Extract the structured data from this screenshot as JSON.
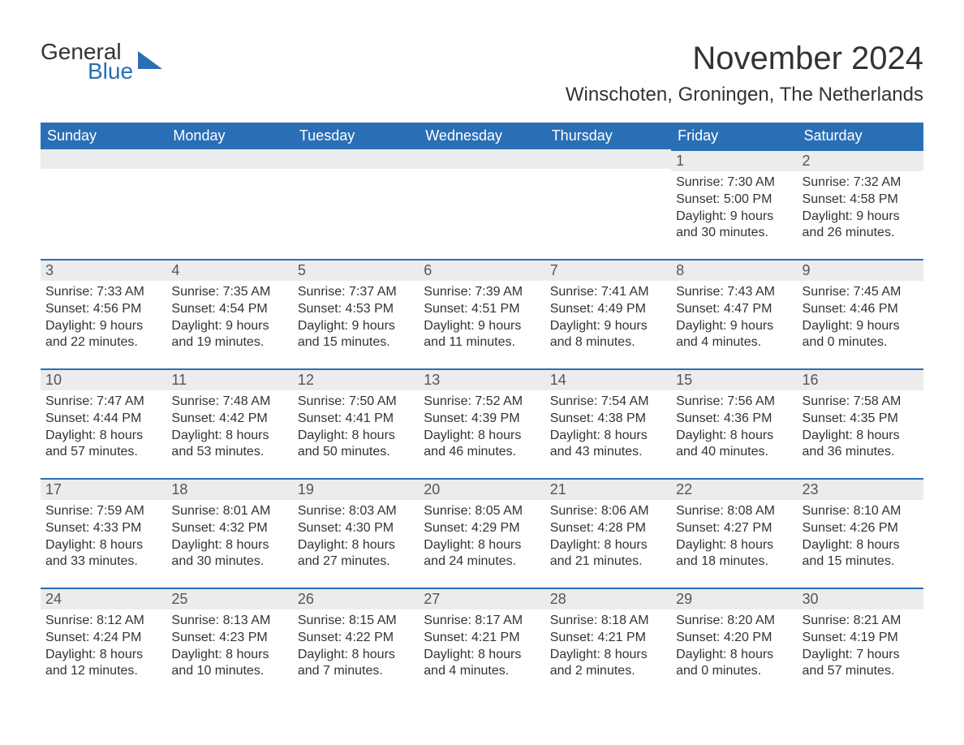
{
  "logo": {
    "general": "General",
    "blue": "Blue"
  },
  "header": {
    "title": "November 2024",
    "location": "Winschoten, Groningen, The Netherlands"
  },
  "colors": {
    "brand_blue": "#2a6fb5",
    "header_text": "#ffffff",
    "daybar_bg": "#ececec",
    "daybar_border": "#2a6fb5",
    "body_text": "#333333",
    "background": "#ffffff"
  },
  "calendar": {
    "type": "table",
    "columns": [
      "Sunday",
      "Monday",
      "Tuesday",
      "Wednesday",
      "Thursday",
      "Friday",
      "Saturday"
    ],
    "weeks": [
      [
        null,
        null,
        null,
        null,
        null,
        {
          "day": "1",
          "sunrise": "Sunrise: 7:30 AM",
          "sunset": "Sunset: 5:00 PM",
          "daylight1": "Daylight: 9 hours",
          "daylight2": "and 30 minutes."
        },
        {
          "day": "2",
          "sunrise": "Sunrise: 7:32 AM",
          "sunset": "Sunset: 4:58 PM",
          "daylight1": "Daylight: 9 hours",
          "daylight2": "and 26 minutes."
        }
      ],
      [
        {
          "day": "3",
          "sunrise": "Sunrise: 7:33 AM",
          "sunset": "Sunset: 4:56 PM",
          "daylight1": "Daylight: 9 hours",
          "daylight2": "and 22 minutes."
        },
        {
          "day": "4",
          "sunrise": "Sunrise: 7:35 AM",
          "sunset": "Sunset: 4:54 PM",
          "daylight1": "Daylight: 9 hours",
          "daylight2": "and 19 minutes."
        },
        {
          "day": "5",
          "sunrise": "Sunrise: 7:37 AM",
          "sunset": "Sunset: 4:53 PM",
          "daylight1": "Daylight: 9 hours",
          "daylight2": "and 15 minutes."
        },
        {
          "day": "6",
          "sunrise": "Sunrise: 7:39 AM",
          "sunset": "Sunset: 4:51 PM",
          "daylight1": "Daylight: 9 hours",
          "daylight2": "and 11 minutes."
        },
        {
          "day": "7",
          "sunrise": "Sunrise: 7:41 AM",
          "sunset": "Sunset: 4:49 PM",
          "daylight1": "Daylight: 9 hours",
          "daylight2": "and 8 minutes."
        },
        {
          "day": "8",
          "sunrise": "Sunrise: 7:43 AM",
          "sunset": "Sunset: 4:47 PM",
          "daylight1": "Daylight: 9 hours",
          "daylight2": "and 4 minutes."
        },
        {
          "day": "9",
          "sunrise": "Sunrise: 7:45 AM",
          "sunset": "Sunset: 4:46 PM",
          "daylight1": "Daylight: 9 hours",
          "daylight2": "and 0 minutes."
        }
      ],
      [
        {
          "day": "10",
          "sunrise": "Sunrise: 7:47 AM",
          "sunset": "Sunset: 4:44 PM",
          "daylight1": "Daylight: 8 hours",
          "daylight2": "and 57 minutes."
        },
        {
          "day": "11",
          "sunrise": "Sunrise: 7:48 AM",
          "sunset": "Sunset: 4:42 PM",
          "daylight1": "Daylight: 8 hours",
          "daylight2": "and 53 minutes."
        },
        {
          "day": "12",
          "sunrise": "Sunrise: 7:50 AM",
          "sunset": "Sunset: 4:41 PM",
          "daylight1": "Daylight: 8 hours",
          "daylight2": "and 50 minutes."
        },
        {
          "day": "13",
          "sunrise": "Sunrise: 7:52 AM",
          "sunset": "Sunset: 4:39 PM",
          "daylight1": "Daylight: 8 hours",
          "daylight2": "and 46 minutes."
        },
        {
          "day": "14",
          "sunrise": "Sunrise: 7:54 AM",
          "sunset": "Sunset: 4:38 PM",
          "daylight1": "Daylight: 8 hours",
          "daylight2": "and 43 minutes."
        },
        {
          "day": "15",
          "sunrise": "Sunrise: 7:56 AM",
          "sunset": "Sunset: 4:36 PM",
          "daylight1": "Daylight: 8 hours",
          "daylight2": "and 40 minutes."
        },
        {
          "day": "16",
          "sunrise": "Sunrise: 7:58 AM",
          "sunset": "Sunset: 4:35 PM",
          "daylight1": "Daylight: 8 hours",
          "daylight2": "and 36 minutes."
        }
      ],
      [
        {
          "day": "17",
          "sunrise": "Sunrise: 7:59 AM",
          "sunset": "Sunset: 4:33 PM",
          "daylight1": "Daylight: 8 hours",
          "daylight2": "and 33 minutes."
        },
        {
          "day": "18",
          "sunrise": "Sunrise: 8:01 AM",
          "sunset": "Sunset: 4:32 PM",
          "daylight1": "Daylight: 8 hours",
          "daylight2": "and 30 minutes."
        },
        {
          "day": "19",
          "sunrise": "Sunrise: 8:03 AM",
          "sunset": "Sunset: 4:30 PM",
          "daylight1": "Daylight: 8 hours",
          "daylight2": "and 27 minutes."
        },
        {
          "day": "20",
          "sunrise": "Sunrise: 8:05 AM",
          "sunset": "Sunset: 4:29 PM",
          "daylight1": "Daylight: 8 hours",
          "daylight2": "and 24 minutes."
        },
        {
          "day": "21",
          "sunrise": "Sunrise: 8:06 AM",
          "sunset": "Sunset: 4:28 PM",
          "daylight1": "Daylight: 8 hours",
          "daylight2": "and 21 minutes."
        },
        {
          "day": "22",
          "sunrise": "Sunrise: 8:08 AM",
          "sunset": "Sunset: 4:27 PM",
          "daylight1": "Daylight: 8 hours",
          "daylight2": "and 18 minutes."
        },
        {
          "day": "23",
          "sunrise": "Sunrise: 8:10 AM",
          "sunset": "Sunset: 4:26 PM",
          "daylight1": "Daylight: 8 hours",
          "daylight2": "and 15 minutes."
        }
      ],
      [
        {
          "day": "24",
          "sunrise": "Sunrise: 8:12 AM",
          "sunset": "Sunset: 4:24 PM",
          "daylight1": "Daylight: 8 hours",
          "daylight2": "and 12 minutes."
        },
        {
          "day": "25",
          "sunrise": "Sunrise: 8:13 AM",
          "sunset": "Sunset: 4:23 PM",
          "daylight1": "Daylight: 8 hours",
          "daylight2": "and 10 minutes."
        },
        {
          "day": "26",
          "sunrise": "Sunrise: 8:15 AM",
          "sunset": "Sunset: 4:22 PM",
          "daylight1": "Daylight: 8 hours",
          "daylight2": "and 7 minutes."
        },
        {
          "day": "27",
          "sunrise": "Sunrise: 8:17 AM",
          "sunset": "Sunset: 4:21 PM",
          "daylight1": "Daylight: 8 hours",
          "daylight2": "and 4 minutes."
        },
        {
          "day": "28",
          "sunrise": "Sunrise: 8:18 AM",
          "sunset": "Sunset: 4:21 PM",
          "daylight1": "Daylight: 8 hours",
          "daylight2": "and 2 minutes."
        },
        {
          "day": "29",
          "sunrise": "Sunrise: 8:20 AM",
          "sunset": "Sunset: 4:20 PM",
          "daylight1": "Daylight: 8 hours",
          "daylight2": "and 0 minutes."
        },
        {
          "day": "30",
          "sunrise": "Sunrise: 8:21 AM",
          "sunset": "Sunset: 4:19 PM",
          "daylight1": "Daylight: 7 hours",
          "daylight2": "and 57 minutes."
        }
      ]
    ]
  }
}
